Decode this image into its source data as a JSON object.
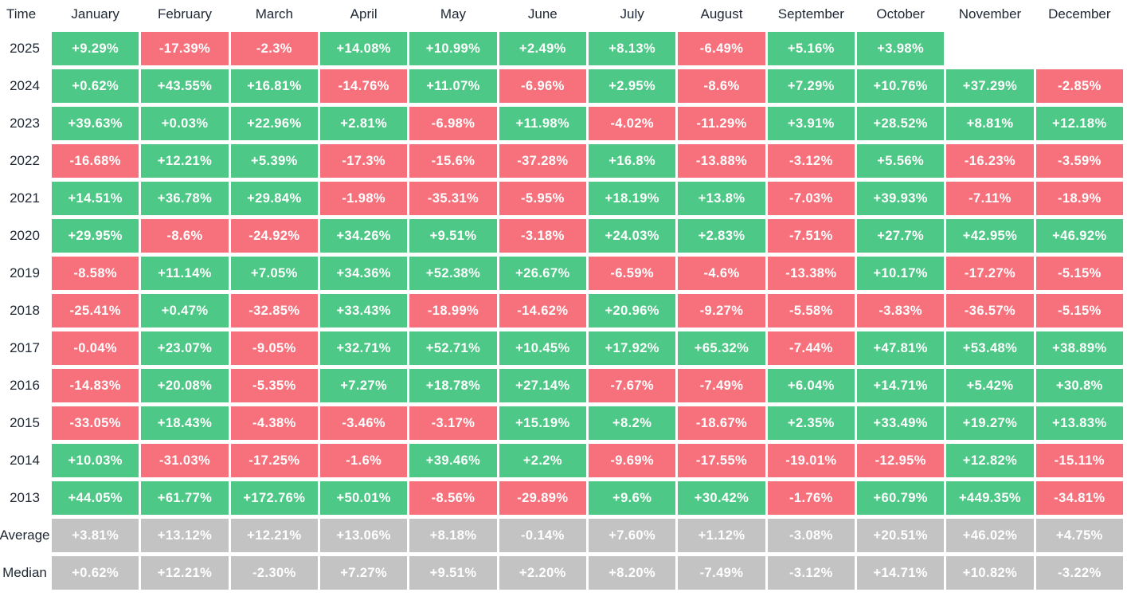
{
  "header": {
    "time_label": "Time",
    "months": [
      "January",
      "February",
      "March",
      "April",
      "May",
      "June",
      "July",
      "August",
      "September",
      "October",
      "November",
      "December"
    ]
  },
  "rows": [
    {
      "label": "2025",
      "type": "year",
      "cells": [
        "+9.29%",
        "-17.39%",
        "-2.3%",
        "+14.08%",
        "+10.99%",
        "+2.49%",
        "+8.13%",
        "-6.49%",
        "+5.16%",
        "+3.98%",
        "",
        ""
      ]
    },
    {
      "label": "2024",
      "type": "year",
      "cells": [
        "+0.62%",
        "+43.55%",
        "+16.81%",
        "-14.76%",
        "+11.07%",
        "-6.96%",
        "+2.95%",
        "-8.6%",
        "+7.29%",
        "+10.76%",
        "+37.29%",
        "-2.85%"
      ]
    },
    {
      "label": "2023",
      "type": "year",
      "cells": [
        "+39.63%",
        "+0.03%",
        "+22.96%",
        "+2.81%",
        "-6.98%",
        "+11.98%",
        "-4.02%",
        "-11.29%",
        "+3.91%",
        "+28.52%",
        "+8.81%",
        "+12.18%"
      ]
    },
    {
      "label": "2022",
      "type": "year",
      "cells": [
        "-16.68%",
        "+12.21%",
        "+5.39%",
        "-17.3%",
        "-15.6%",
        "-37.28%",
        "+16.8%",
        "-13.88%",
        "-3.12%",
        "+5.56%",
        "-16.23%",
        "-3.59%"
      ]
    },
    {
      "label": "2021",
      "type": "year",
      "cells": [
        "+14.51%",
        "+36.78%",
        "+29.84%",
        "-1.98%",
        "-35.31%",
        "-5.95%",
        "+18.19%",
        "+13.8%",
        "-7.03%",
        "+39.93%",
        "-7.11%",
        "-18.9%"
      ]
    },
    {
      "label": "2020",
      "type": "year",
      "cells": [
        "+29.95%",
        "-8.6%",
        "-24.92%",
        "+34.26%",
        "+9.51%",
        "-3.18%",
        "+24.03%",
        "+2.83%",
        "-7.51%",
        "+27.7%",
        "+42.95%",
        "+46.92%"
      ]
    },
    {
      "label": "2019",
      "type": "year",
      "cells": [
        "-8.58%",
        "+11.14%",
        "+7.05%",
        "+34.36%",
        "+52.38%",
        "+26.67%",
        "-6.59%",
        "-4.6%",
        "-13.38%",
        "+10.17%",
        "-17.27%",
        "-5.15%"
      ]
    },
    {
      "label": "2018",
      "type": "year",
      "cells": [
        "-25.41%",
        "+0.47%",
        "-32.85%",
        "+33.43%",
        "-18.99%",
        "-14.62%",
        "+20.96%",
        "-9.27%",
        "-5.58%",
        "-3.83%",
        "-36.57%",
        "-5.15%"
      ]
    },
    {
      "label": "2017",
      "type": "year",
      "cells": [
        "-0.04%",
        "+23.07%",
        "-9.05%",
        "+32.71%",
        "+52.71%",
        "+10.45%",
        "+17.92%",
        "+65.32%",
        "-7.44%",
        "+47.81%",
        "+53.48%",
        "+38.89%"
      ]
    },
    {
      "label": "2016",
      "type": "year",
      "cells": [
        "-14.83%",
        "+20.08%",
        "-5.35%",
        "+7.27%",
        "+18.78%",
        "+27.14%",
        "-7.67%",
        "-7.49%",
        "+6.04%",
        "+14.71%",
        "+5.42%",
        "+30.8%"
      ]
    },
    {
      "label": "2015",
      "type": "year",
      "cells": [
        "-33.05%",
        "+18.43%",
        "-4.38%",
        "-3.46%",
        "-3.17%",
        "+15.19%",
        "+8.2%",
        "-18.67%",
        "+2.35%",
        "+33.49%",
        "+19.27%",
        "+13.83%"
      ]
    },
    {
      "label": "2014",
      "type": "year",
      "cells": [
        "+10.03%",
        "-31.03%",
        "-17.25%",
        "-1.6%",
        "+39.46%",
        "+2.2%",
        "-9.69%",
        "-17.55%",
        "-19.01%",
        "-12.95%",
        "+12.82%",
        "-15.11%"
      ]
    },
    {
      "label": "2013",
      "type": "year",
      "cells": [
        "+44.05%",
        "+61.77%",
        "+172.76%",
        "+50.01%",
        "-8.56%",
        "-29.89%",
        "+9.6%",
        "+30.42%",
        "-1.76%",
        "+60.79%",
        "+449.35%",
        "-34.81%"
      ]
    },
    {
      "label": "Average",
      "type": "summary",
      "cells": [
        "+3.81%",
        "+13.12%",
        "+12.21%",
        "+13.06%",
        "+8.18%",
        "-0.14%",
        "+7.60%",
        "+1.12%",
        "-3.08%",
        "+20.51%",
        "+46.02%",
        "+4.75%"
      ]
    },
    {
      "label": "Median",
      "type": "summary",
      "cells": [
        "+0.62%",
        "+12.21%",
        "-2.30%",
        "+7.27%",
        "+9.51%",
        "+2.20%",
        "+8.20%",
        "-7.49%",
        "-3.12%",
        "+14.71%",
        "+10.82%",
        "-3.22%"
      ]
    }
  ],
  "colors": {
    "positive": "#4dc886",
    "negative": "#f7717c",
    "summary": "#c3c3c3",
    "header_text": "#1e2733",
    "cell_text": "#ffffff"
  },
  "chart_data": {
    "type": "heatmap",
    "title": "",
    "x_labels": [
      "January",
      "February",
      "March",
      "April",
      "May",
      "June",
      "July",
      "August",
      "September",
      "October",
      "November",
      "December"
    ],
    "y_labels": [
      "2025",
      "2024",
      "2023",
      "2022",
      "2021",
      "2020",
      "2019",
      "2018",
      "2017",
      "2016",
      "2015",
      "2014",
      "2013",
      "Average",
      "Median"
    ],
    "values_unit": "percent",
    "values": [
      [
        9.29,
        -17.39,
        -2.3,
        14.08,
        10.99,
        2.49,
        8.13,
        -6.49,
        5.16,
        3.98,
        null,
        null
      ],
      [
        0.62,
        43.55,
        16.81,
        -14.76,
        11.07,
        -6.96,
        2.95,
        -8.6,
        7.29,
        10.76,
        37.29,
        -2.85
      ],
      [
        39.63,
        0.03,
        22.96,
        2.81,
        -6.98,
        11.98,
        -4.02,
        -11.29,
        3.91,
        28.52,
        8.81,
        12.18
      ],
      [
        -16.68,
        12.21,
        5.39,
        -17.3,
        -15.6,
        -37.28,
        16.8,
        -13.88,
        -3.12,
        5.56,
        -16.23,
        -3.59
      ],
      [
        14.51,
        36.78,
        29.84,
        -1.98,
        -35.31,
        -5.95,
        18.19,
        13.8,
        -7.03,
        39.93,
        -7.11,
        -18.9
      ],
      [
        29.95,
        -8.6,
        -24.92,
        34.26,
        9.51,
        -3.18,
        24.03,
        2.83,
        -7.51,
        27.7,
        42.95,
        46.92
      ],
      [
        -8.58,
        11.14,
        7.05,
        34.36,
        52.38,
        26.67,
        -6.59,
        -4.6,
        -13.38,
        10.17,
        -17.27,
        -5.15
      ],
      [
        -25.41,
        0.47,
        -32.85,
        33.43,
        -18.99,
        -14.62,
        20.96,
        -9.27,
        -5.58,
        -3.83,
        -36.57,
        -5.15
      ],
      [
        -0.04,
        23.07,
        -9.05,
        32.71,
        52.71,
        10.45,
        17.92,
        65.32,
        -7.44,
        47.81,
        53.48,
        38.89
      ],
      [
        -14.83,
        20.08,
        -5.35,
        7.27,
        18.78,
        27.14,
        -7.67,
        -7.49,
        6.04,
        14.71,
        5.42,
        30.8
      ],
      [
        -33.05,
        18.43,
        -4.38,
        -3.46,
        -3.17,
        15.19,
        8.2,
        -18.67,
        2.35,
        33.49,
        19.27,
        13.83
      ],
      [
        10.03,
        -31.03,
        -17.25,
        -1.6,
        39.46,
        2.2,
        -9.69,
        -17.55,
        -19.01,
        -12.95,
        12.82,
        -15.11
      ],
      [
        44.05,
        61.77,
        172.76,
        50.01,
        -8.56,
        -29.89,
        9.6,
        30.42,
        -1.76,
        60.79,
        449.35,
        -34.81
      ],
      [
        3.81,
        13.12,
        12.21,
        13.06,
        8.18,
        -0.14,
        7.6,
        1.12,
        -3.08,
        20.51,
        46.02,
        4.75
      ],
      [
        0.62,
        12.21,
        -2.3,
        7.27,
        9.51,
        2.2,
        8.2,
        -7.49,
        -3.12,
        14.71,
        10.82,
        -3.22
      ]
    ],
    "legend": "green = positive monthly return, red = negative monthly return, gray = summary rows (Average, Median)",
    "grid": false,
    "cell_colors": {
      "positive": "#4dc886",
      "negative": "#f7717c",
      "summary": "#c3c3c3"
    }
  }
}
